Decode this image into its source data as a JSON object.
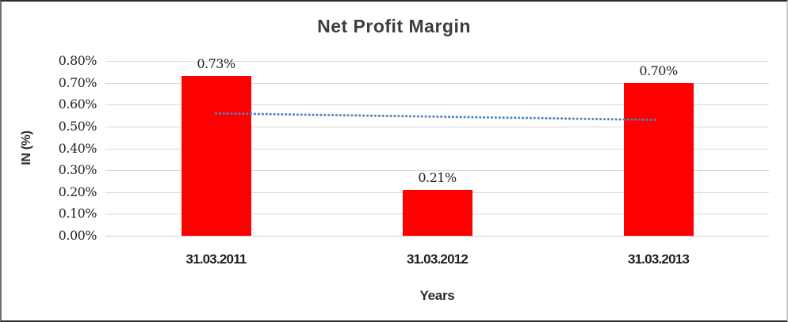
{
  "chart_data": {
    "type": "bar",
    "title": "Net Profit Margin",
    "xlabel": "Years",
    "ylabel": "IN (%)",
    "categories": [
      "31.03.2011",
      "31.03.2012",
      "31.03.2013"
    ],
    "series": [
      {
        "name": "Net Profit Margin",
        "values": [
          0.73,
          0.21,
          0.7
        ]
      }
    ],
    "data_labels": [
      "0.73%",
      "0.21%",
      "0.70%"
    ],
    "y_ticks": [
      "0.80%",
      "0.70%",
      "0.60%",
      "0.50%",
      "0.40%",
      "0.30%",
      "0.20%",
      "0.10%",
      "0.00%"
    ],
    "ylim": [
      0,
      0.8
    ],
    "y_step": 0.1,
    "grid": true,
    "legend": "none",
    "bar_color": "#ff0000",
    "gridline_color": "#d9d9d9",
    "trendline": {
      "type": "linear",
      "style": "dotted",
      "color": "#4a86c4",
      "start_value": 0.56,
      "end_value": 0.53
    }
  }
}
